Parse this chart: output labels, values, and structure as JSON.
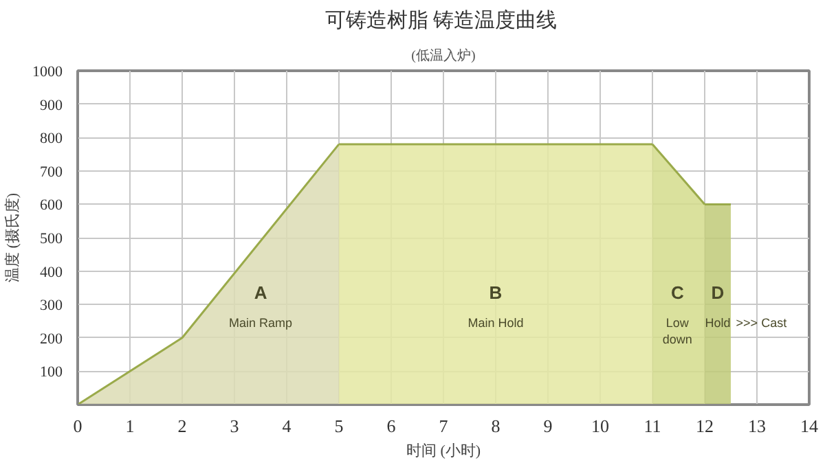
{
  "chart_data": {
    "type": "area",
    "title": "可铸造树脂  铸造温度曲线",
    "subtitle": "(低温入炉)",
    "xlabel": "时间 (小时)",
    "ylabel": "温度 (摄氏度)",
    "series": [
      {
        "x": [
          0,
          2,
          5
        ],
        "values": [
          0,
          200,
          780
        ],
        "color": "#dcdcb4"
      },
      {
        "x": [
          5,
          11
        ],
        "values": [
          780,
          780
        ],
        "color": "#e4e8a2"
      },
      {
        "x": [
          11,
          12
        ],
        "values": [
          780,
          600
        ],
        "color": "#d4dc8c"
      },
      {
        "x": [
          12,
          12.5
        ],
        "values": [
          600,
          600
        ],
        "color": "#bfca78"
      }
    ],
    "annotations": [
      "A",
      "Main Ramp",
      "B",
      "Main Hold",
      "C",
      "Low\ndown",
      "D",
      "Hold",
      ">>> Cast"
    ],
    "xlim": [
      0,
      14
    ],
    "xticks": [
      0,
      1,
      2,
      3,
      4,
      5,
      6,
      7,
      8,
      9,
      10,
      11,
      12,
      13,
      14
    ],
    "ylim": [
      0,
      1000
    ],
    "yticks": [
      {
        "value": 0,
        "label": null
      },
      100,
      200,
      300,
      400,
      500,
      600,
      700,
      800,
      900,
      1000
    ],
    "grid": true
  }
}
